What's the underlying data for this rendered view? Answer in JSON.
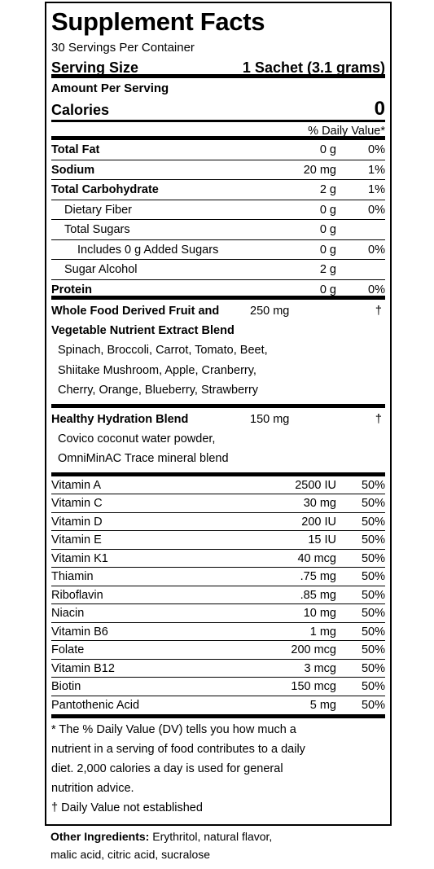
{
  "title": "Supplement Facts",
  "servings_per_container": "30 Servings Per Container",
  "serving_size_label": "Serving Size",
  "serving_size_value": "1 Sachet (3.1 grams)",
  "amount_per_serving": "Amount Per Serving",
  "calories_label": "Calories",
  "calories_value": "0",
  "dv_header": "% Daily Value*",
  "macros": [
    {
      "name": "Total Fat",
      "amount": "0 g",
      "dv": "0%"
    },
    {
      "name": "Sodium",
      "amount": "20 mg",
      "dv": "1%"
    },
    {
      "name": "Total Carbohydrate",
      "amount": "2 g",
      "dv": "1%"
    },
    {
      "name": "Dietary Fiber",
      "amount": "0 g",
      "dv": "0%"
    },
    {
      "name": "Total Sugars",
      "amount": "0 g",
      "dv": ""
    },
    {
      "name": "Includes 0 g Added Sugars",
      "amount": "0 g",
      "dv": "0%"
    },
    {
      "name": "Sugar Alcohol",
      "amount": "2 g",
      "dv": ""
    },
    {
      "name": "Protein",
      "amount": "0 g",
      "dv": "0%"
    }
  ],
  "blends": [
    {
      "name_line1": "Whole Food Derived Fruit and",
      "name_line2": "Vegetable Nutrient Extract Blend",
      "amount": "250 mg",
      "dv": "†",
      "ingredients": [
        "Spinach, Broccoli, Carrot, Tomato, Beet,",
        "Shiitake Mushroom, Apple, Cranberry,",
        "Cherry, Orange, Blueberry, Strawberry"
      ]
    },
    {
      "name_line1": "Healthy Hydration Blend",
      "amount": "150 mg",
      "dv": "†",
      "ingredients": [
        "Covico coconut water powder,",
        "OmniMinAC Trace mineral blend"
      ]
    }
  ],
  "vitamins": [
    {
      "name": "Vitamin A",
      "amount": "2500 IU",
      "dv": "50%"
    },
    {
      "name": "Vitamin C",
      "amount": "30 mg",
      "dv": "50%"
    },
    {
      "name": "Vitamin D",
      "amount": "200 IU",
      "dv": "50%"
    },
    {
      "name": "Vitamin E",
      "amount": "15 IU",
      "dv": "50%"
    },
    {
      "name": "Vitamin K1",
      "amount": "40 mcg",
      "dv": "50%"
    },
    {
      "name": "Thiamin",
      "amount": ".75 mg",
      "dv": "50%"
    },
    {
      "name": "Riboflavin",
      "amount": ".85 mg",
      "dv": "50%"
    },
    {
      "name": "Niacin",
      "amount": "10 mg",
      "dv": "50%"
    },
    {
      "name": "Vitamin B6",
      "amount": "1 mg",
      "dv": "50%"
    },
    {
      "name": "Folate",
      "amount": "200 mcg",
      "dv": "50%"
    },
    {
      "name": "Vitamin B12",
      "amount": "3 mcg",
      "dv": "50%"
    },
    {
      "name": "Biotin",
      "amount": "150 mcg",
      "dv": "50%"
    },
    {
      "name": "Pantothenic Acid",
      "amount": "5 mg",
      "dv": "50%"
    }
  ],
  "footnote_lines": [
    "* The % Daily Value (DV) tells you how much a",
    "nutrient in a serving of food contributes to a daily",
    "diet. 2,000 calories a day is used for general",
    "nutrition advice."
  ],
  "dagger_note": "† Daily Value not established",
  "other_ingredients_label": "Other Ingredients:",
  "other_ingredients_line1": "Erythritol, natural flavor,",
  "other_ingredients_line2": "malic acid, citric acid, sucralose"
}
